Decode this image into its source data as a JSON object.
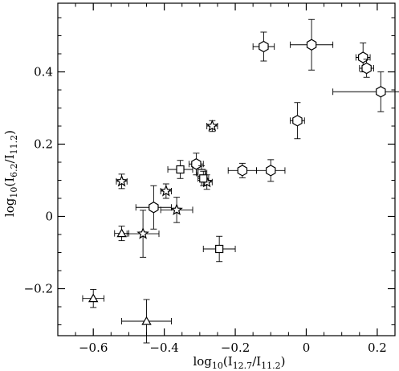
{
  "chart_data": {
    "type": "scatter",
    "xlabel": {
      "base": "log",
      "base_sub": "10",
      "open": "(I",
      "num_sub": "12.7",
      "slash": "/I",
      "den_sub": "11.2",
      "close": ")"
    },
    "ylabel": {
      "base": "log",
      "base_sub": "10",
      "open": "(I",
      "num_sub": "6.2",
      "slash": "/I",
      "den_sub": "11.2",
      "close": ")"
    },
    "xlim": [
      -0.7,
      0.25
    ],
    "ylim": [
      -0.33,
      0.59
    ],
    "x_ticks": [
      -0.6,
      -0.4,
      -0.2,
      0,
      0.2
    ],
    "x_tick_labels": [
      "−0.6",
      "−0.4",
      "−0.2",
      "0",
      "0.2"
    ],
    "y_ticks": [
      -0.2,
      0,
      0.2,
      0.4
    ],
    "y_tick_labels": [
      "−0.2",
      "0",
      "0.2",
      "0.4"
    ],
    "x_minor_step": 0.05,
    "y_minor_step": 0.05,
    "grid": false,
    "series": [
      {
        "marker": "hexagon",
        "points": [
          {
            "x": -0.12,
            "y": 0.47,
            "xerr": 0.03,
            "yerr": 0.04
          },
          {
            "x": 0.015,
            "y": 0.475,
            "xerr": 0.06,
            "yerr": 0.07
          },
          {
            "x": 0.16,
            "y": 0.44,
            "xerr": 0.02,
            "yerr": 0.04
          },
          {
            "x": 0.17,
            "y": 0.41,
            "xerr": 0.02,
            "yerr": 0.025
          },
          {
            "x": 0.21,
            "y": 0.345,
            "xerr": 0.135,
            "yerr": 0.055
          },
          {
            "x": -0.025,
            "y": 0.265,
            "xerr": 0.02,
            "yerr": 0.05
          },
          {
            "x": -0.31,
            "y": 0.145,
            "xerr": 0.02,
            "yerr": 0.03
          },
          {
            "x": -0.18,
            "y": 0.127,
            "xerr": 0.04,
            "yerr": 0.02
          },
          {
            "x": -0.1,
            "y": 0.127,
            "xerr": 0.04,
            "yerr": 0.03
          },
          {
            "x": -0.43,
            "y": 0.025,
            "xerr": 0.05,
            "yerr": 0.06
          }
        ]
      },
      {
        "marker": "star",
        "points": [
          {
            "x": -0.265,
            "y": 0.25,
            "xerr": 0.015,
            "yerr": 0.015
          },
          {
            "x": -0.52,
            "y": 0.097,
            "xerr": 0.015,
            "yerr": 0.02
          },
          {
            "x": -0.395,
            "y": 0.07,
            "xerr": 0.015,
            "yerr": 0.02
          },
          {
            "x": -0.28,
            "y": 0.095,
            "xerr": 0.015,
            "yerr": 0.02
          },
          {
            "x": -0.365,
            "y": 0.018,
            "xerr": 0.045,
            "yerr": 0.035
          },
          {
            "x": -0.46,
            "y": -0.048,
            "xerr": 0.045,
            "yerr": 0.065
          }
        ]
      },
      {
        "marker": "square",
        "points": [
          {
            "x": -0.355,
            "y": 0.13,
            "xerr": 0.035,
            "yerr": 0.025
          },
          {
            "x": -0.295,
            "y": 0.12,
            "xerr": 0.015,
            "yerr": 0.02
          },
          {
            "x": -0.29,
            "y": 0.105,
            "xerr": 0.015,
            "yerr": 0.02
          },
          {
            "x": -0.245,
            "y": -0.09,
            "xerr": 0.045,
            "yerr": 0.035
          }
        ]
      },
      {
        "marker": "triangle",
        "points": [
          {
            "x": -0.52,
            "y": -0.047,
            "xerr": 0.02,
            "yerr": 0.02
          },
          {
            "x": -0.6,
            "y": -0.227,
            "xerr": 0.03,
            "yerr": 0.025
          },
          {
            "x": -0.45,
            "y": -0.29,
            "xerr": 0.07,
            "yerr": 0.06
          }
        ]
      }
    ]
  }
}
